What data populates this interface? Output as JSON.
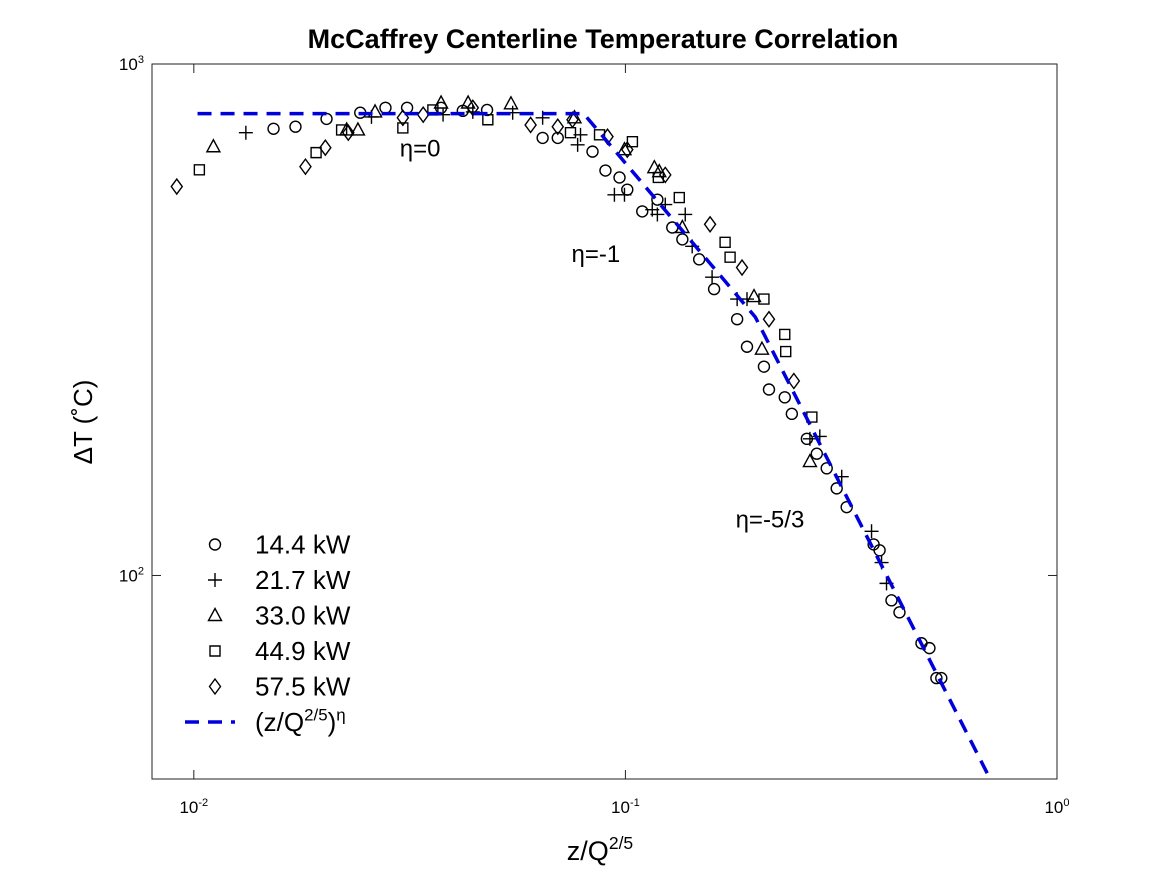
{
  "chart_data": {
    "type": "scatter",
    "title": "McCaffrey Centerline Temperature Correlation",
    "xlabel": [
      "z/Q",
      "2/5"
    ],
    "ylabel": "ΔT (˚C)",
    "xscale": "log",
    "yscale": "log",
    "xlim": [
      0.008,
      1
    ],
    "ylim": [
      40,
      1000
    ],
    "xticks": [
      {
        "value": 0.01,
        "label": [
          "10",
          "-2"
        ]
      },
      {
        "value": 0.1,
        "label": [
          "10",
          "-1"
        ]
      },
      {
        "value": 1,
        "label": [
          "10",
          "0"
        ]
      }
    ],
    "yticks": [
      {
        "value": 100,
        "label": [
          "10",
          "2"
        ]
      },
      {
        "value": 1000,
        "label": [
          "10",
          "3"
        ]
      }
    ],
    "legend": "lower left",
    "annotations": [
      {
        "text": "η=0",
        "x": 0.03,
        "y": 660
      },
      {
        "text": "η=-1",
        "x": 0.075,
        "y": 410
      },
      {
        "text": "η=-5/3",
        "x": 0.18,
        "y": 124
      }
    ],
    "series": [
      {
        "name": "14.4 kW",
        "marker": "circle",
        "color": "#000000",
        "x": [
          0.0153,
          0.0172,
          0.0203,
          0.0243,
          0.0278,
          0.0312,
          0.0374,
          0.042,
          0.0478,
          0.0643,
          0.0697,
          0.0839,
          0.0899,
          0.0969,
          0.101,
          0.1094,
          0.1186,
          0.1284,
          0.1355,
          0.1482,
          0.1605,
          0.1815,
          0.1913,
          0.2094,
          0.2151,
          0.234,
          0.243,
          0.2633,
          0.2776,
          0.2927,
          0.3087,
          0.3256,
          0.3759,
          0.3881,
          0.4135,
          0.4315,
          0.4853,
          0.5063,
          0.5255,
          0.5394
        ],
        "values": [
          747,
          754,
          781,
          803,
          821,
          821,
          821,
          810,
          813,
          717,
          717,
          674,
          619,
          600,
          568,
          515,
          543,
          479,
          454,
          415,
          363,
          317,
          280,
          256,
          231,
          223,
          207,
          185,
          173,
          162,
          148,
          136,
          115,
          112,
          89.4,
          84.7,
          73.7,
          72.1,
          63,
          63
        ]
      },
      {
        "name": "21.7 kW",
        "marker": "plus",
        "color": "#000000",
        "x": [
          0.0132,
          0.0258,
          0.0378,
          0.0443,
          0.0548,
          0.0643,
          0.0787,
          0.0775,
          0.0943,
          0.0995,
          0.1154,
          0.1186,
          0.1237,
          0.1376,
          0.1428,
          0.1588,
          0.1815,
          0.1913,
          0.2676,
          0.2821,
          0.3171,
          0.3718,
          0.3922,
          0.4027
        ],
        "values": [
          734,
          788,
          796,
          806,
          803,
          785,
          727,
          695,
          555,
          555,
          519,
          508,
          531,
          508,
          440,
          383,
          347,
          347,
          185,
          187,
          156,
          122,
          106,
          96.5
        ]
      },
      {
        "name": "33.0 kW",
        "marker": "triangle",
        "color": "#000000",
        "x": [
          0.0111,
          0.0226,
          0.024,
          0.0263,
          0.0374,
          0.0432,
          0.0543,
          0.0762,
          0.0995,
          0.1167,
          0.1198,
          0.1355,
          0.1986,
          0.2072,
          0.2676
        ],
        "values": [
          689,
          743,
          743,
          806,
          839,
          839,
          836,
          785,
          680,
          627,
          616,
          479,
          351,
          277,
          167
        ]
      },
      {
        "name": "44.9 kW",
        "marker": "square",
        "color": "#000000",
        "x": [
          0.0103,
          0.0192,
          0.022,
          0.0305,
          0.0358,
          0.048,
          0.0746,
          0.0871,
          0.1038,
          0.1192,
          0.1333,
          0.1702,
          0.1748,
          0.2094,
          0.234,
          0.2352,
          0.2704
        ],
        "values": [
          621,
          671,
          743,
          750,
          813,
          778,
          734,
          727,
          705,
          600,
          548,
          448,
          419,
          347,
          296,
          274,
          204
        ]
      },
      {
        "name": "57.5 kW",
        "marker": "diamond",
        "color": "#000000",
        "x": [
          0.00913,
          0.01814,
          0.02017,
          0.0228,
          0.0305,
          0.034,
          0.0443,
          0.0603,
          0.0697,
          0.0754,
          0.0909,
          0.101,
          0.1237,
          0.1571,
          0.1863,
          0.2151,
          0.2456
        ],
        "values": [
          576,
          630,
          686,
          734,
          785,
          796,
          821,
          760,
          754,
          778,
          721,
          680,
          607,
          486,
          400,
          317,
          240
        ]
      },
      {
        "name": [
          "(z/Q",
          "2/5",
          ")",
          "η"
        ],
        "line": "dashed",
        "color": "#0000dd",
        "x": [
          0.0102,
          0.08,
          0.2,
          0.7
        ],
        "values": [
          800,
          800,
          320,
          40
        ]
      }
    ]
  }
}
